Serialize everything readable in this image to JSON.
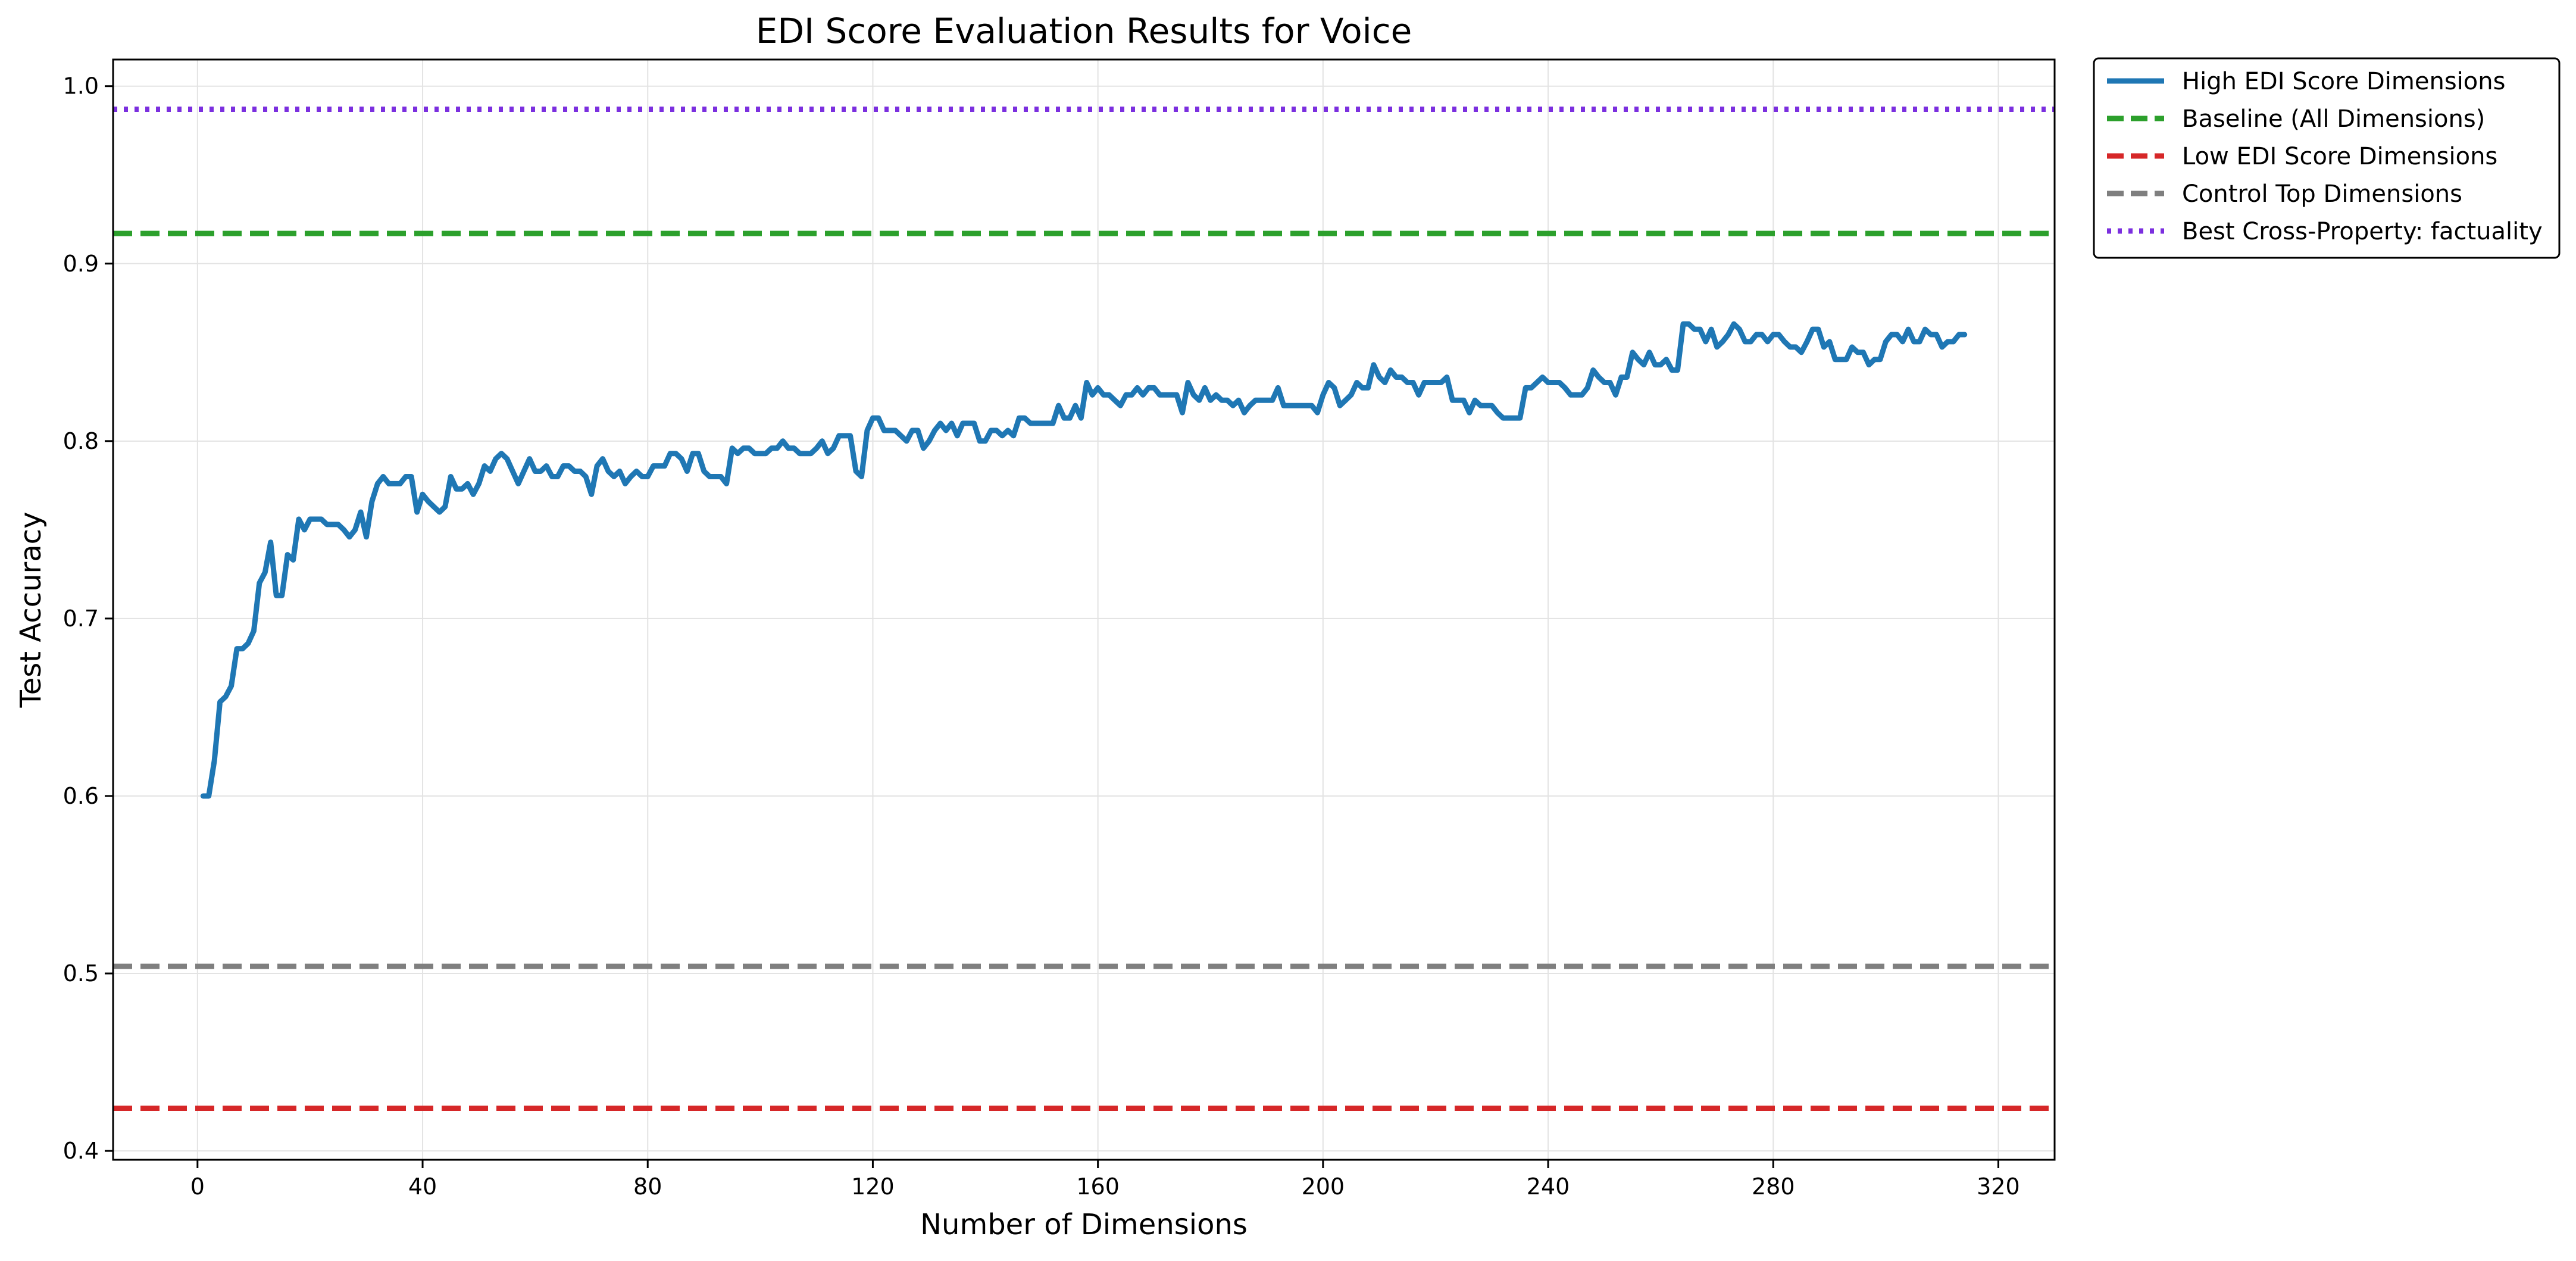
{
  "chart_data": {
    "type": "line",
    "title": "EDI Score Evaluation Results for Voice",
    "xlabel": "Number of Dimensions",
    "ylabel": "Test Accuracy",
    "xlim": [
      -15,
      330
    ],
    "ylim": [
      0.395,
      1.015
    ],
    "xticks": [
      0,
      40,
      80,
      120,
      160,
      200,
      240,
      280,
      320
    ],
    "xtick_labels": [
      "0",
      "40",
      "80",
      "120",
      "160",
      "200",
      "240",
      "280",
      "320"
    ],
    "yticks": [
      0.4,
      0.5,
      0.6,
      0.7,
      0.8,
      0.9,
      1.0
    ],
    "ytick_labels": [
      "0.4",
      "0.5",
      "0.6",
      "0.7",
      "0.8",
      "0.9",
      "1.0"
    ],
    "grid": true,
    "legend_position": "outside top-right",
    "series": [
      {
        "name": "High EDI Score Dimensions",
        "style": "solid",
        "color": "#1f77b4",
        "x": [
          1,
          2,
          3,
          4,
          5,
          6,
          7,
          8,
          9,
          10,
          11,
          12,
          13,
          14,
          15,
          16,
          17,
          18,
          19,
          20,
          21,
          22,
          23,
          24,
          25,
          26,
          27,
          28,
          29,
          30,
          31,
          32,
          33,
          34,
          35,
          36,
          37,
          38,
          39,
          40,
          41,
          42,
          43,
          44,
          45,
          46,
          47,
          48,
          49,
          50,
          51,
          52,
          53,
          54,
          55,
          56,
          57,
          58,
          59,
          60,
          61,
          62,
          63,
          64,
          65,
          66,
          67,
          68,
          69,
          70,
          71,
          72,
          73,
          74,
          75,
          76,
          77,
          78,
          79,
          80,
          81,
          82,
          83,
          84,
          85,
          86,
          87,
          88,
          89,
          90,
          91,
          92,
          93,
          94,
          95,
          96,
          97,
          98,
          99,
          100,
          101,
          102,
          103,
          104,
          105,
          106,
          107,
          108,
          109,
          110,
          111,
          112,
          113,
          114,
          115,
          116,
          117,
          118,
          119,
          120,
          121,
          122,
          123,
          124,
          125,
          126,
          127,
          128,
          129,
          130,
          131,
          132,
          133,
          134,
          135,
          136,
          137,
          138,
          139,
          140,
          141,
          142,
          143,
          144,
          145,
          146,
          147,
          148,
          149,
          150,
          151,
          152,
          153,
          154,
          155,
          156,
          157,
          158,
          159,
          160,
          161,
          162,
          163,
          164,
          165,
          166,
          167,
          168,
          169,
          170,
          171,
          172,
          173,
          174,
          175,
          176,
          177,
          178,
          179,
          180,
          181,
          182,
          183,
          184,
          185,
          186,
          187,
          188,
          189,
          190,
          191,
          192,
          193,
          194,
          195,
          196,
          197,
          198,
          199,
          200,
          201,
          202,
          203,
          204,
          205,
          206,
          207,
          208,
          209,
          210,
          211,
          212,
          213,
          214,
          215,
          216,
          217,
          218,
          219,
          220,
          221,
          222,
          223,
          224,
          225,
          226,
          227,
          228,
          229,
          230,
          231,
          232,
          233,
          234,
          235,
          236,
          237,
          238,
          239,
          240,
          241,
          242,
          243,
          244,
          245,
          246,
          247,
          248,
          249,
          250,
          251,
          252,
          253,
          254,
          255,
          256,
          257,
          258,
          259,
          260,
          261,
          262,
          263,
          264,
          265,
          266,
          267,
          268,
          269,
          270,
          271,
          272,
          273,
          274,
          275,
          276,
          277,
          278,
          279,
          280,
          281,
          282,
          283,
          284,
          285,
          286,
          287,
          288,
          289,
          290,
          291,
          292,
          293,
          294,
          295,
          296,
          297,
          298,
          299,
          300,
          301,
          302,
          303,
          304,
          305,
          306,
          307,
          308,
          309,
          310,
          311,
          312,
          313,
          314
        ],
        "y": [
          0.6,
          0.6,
          0.62,
          0.653,
          0.656,
          0.662,
          0.683,
          0.683,
          0.686,
          0.693,
          0.72,
          0.726,
          0.743,
          0.713,
          0.713,
          0.736,
          0.733,
          0.756,
          0.75,
          0.756,
          0.756,
          0.756,
          0.753,
          0.753,
          0.753,
          0.75,
          0.746,
          0.75,
          0.76,
          0.746,
          0.766,
          0.776,
          0.78,
          0.776,
          0.776,
          0.776,
          0.78,
          0.78,
          0.76,
          0.77,
          0.766,
          0.763,
          0.76,
          0.763,
          0.78,
          0.773,
          0.773,
          0.776,
          0.77,
          0.776,
          0.786,
          0.783,
          0.79,
          0.793,
          0.79,
          0.783,
          0.776,
          0.783,
          0.79,
          0.783,
          0.783,
          0.786,
          0.78,
          0.78,
          0.786,
          0.786,
          0.783,
          0.783,
          0.78,
          0.77,
          0.786,
          0.79,
          0.783,
          0.78,
          0.783,
          0.776,
          0.78,
          0.783,
          0.78,
          0.78,
          0.786,
          0.786,
          0.786,
          0.793,
          0.793,
          0.79,
          0.783,
          0.793,
          0.793,
          0.783,
          0.78,
          0.78,
          0.78,
          0.776,
          0.796,
          0.793,
          0.796,
          0.796,
          0.793,
          0.793,
          0.793,
          0.796,
          0.796,
          0.8,
          0.796,
          0.796,
          0.793,
          0.793,
          0.793,
          0.796,
          0.8,
          0.793,
          0.796,
          0.803,
          0.803,
          0.803,
          0.783,
          0.78,
          0.806,
          0.813,
          0.813,
          0.806,
          0.806,
          0.806,
          0.803,
          0.8,
          0.806,
          0.806,
          0.796,
          0.8,
          0.806,
          0.81,
          0.806,
          0.81,
          0.803,
          0.81,
          0.81,
          0.81,
          0.8,
          0.8,
          0.806,
          0.806,
          0.803,
          0.806,
          0.803,
          0.813,
          0.813,
          0.81,
          0.81,
          0.81,
          0.81,
          0.81,
          0.82,
          0.813,
          0.813,
          0.82,
          0.813,
          0.833,
          0.826,
          0.83,
          0.826,
          0.826,
          0.823,
          0.82,
          0.826,
          0.826,
          0.83,
          0.826,
          0.83,
          0.83,
          0.826,
          0.826,
          0.826,
          0.826,
          0.816,
          0.833,
          0.826,
          0.823,
          0.83,
          0.823,
          0.826,
          0.823,
          0.823,
          0.82,
          0.823,
          0.816,
          0.82,
          0.823,
          0.823,
          0.823,
          0.823,
          0.83,
          0.82,
          0.82,
          0.82,
          0.82,
          0.82,
          0.82,
          0.816,
          0.826,
          0.833,
          0.83,
          0.82,
          0.823,
          0.826,
          0.833,
          0.83,
          0.83,
          0.843,
          0.836,
          0.833,
          0.84,
          0.836,
          0.836,
          0.833,
          0.833,
          0.826,
          0.833,
          0.833,
          0.833,
          0.833,
          0.836,
          0.823,
          0.823,
          0.823,
          0.816,
          0.823,
          0.82,
          0.82,
          0.82,
          0.816,
          0.813,
          0.813,
          0.813,
          0.813,
          0.83,
          0.83,
          0.833,
          0.836,
          0.833,
          0.833,
          0.833,
          0.83,
          0.826,
          0.826,
          0.826,
          0.83,
          0.84,
          0.836,
          0.833,
          0.833,
          0.826,
          0.836,
          0.836,
          0.85,
          0.846,
          0.843,
          0.85,
          0.843,
          0.843,
          0.846,
          0.84,
          0.84,
          0.866,
          0.866,
          0.863,
          0.863,
          0.856,
          0.863,
          0.853,
          0.856,
          0.86,
          0.866,
          0.863,
          0.856,
          0.856,
          0.86,
          0.86,
          0.856,
          0.86,
          0.86,
          0.856,
          0.853,
          0.853,
          0.85,
          0.856,
          0.863,
          0.863,
          0.853,
          0.856,
          0.846,
          0.846,
          0.846,
          0.853,
          0.85,
          0.85,
          0.843,
          0.846,
          0.846,
          0.856,
          0.86,
          0.86,
          0.856,
          0.863,
          0.856,
          0.856,
          0.863,
          0.86,
          0.86,
          0.853,
          0.856,
          0.856,
          0.86,
          0.86
        ]
      },
      {
        "name": "Baseline (All Dimensions)",
        "style": "dashed",
        "color": "#2ca02c",
        "y": 0.917
      },
      {
        "name": "Low EDI Score Dimensions",
        "style": "dashed",
        "color": "#d62728",
        "y": 0.424
      },
      {
        "name": "Control Top Dimensions",
        "style": "dashed",
        "color": "#7f7f7f",
        "y": 0.504
      },
      {
        "name": "Best Cross-Property: factuality",
        "style": "dotted",
        "color": "#7b2fdf",
        "y": 0.987
      }
    ]
  }
}
